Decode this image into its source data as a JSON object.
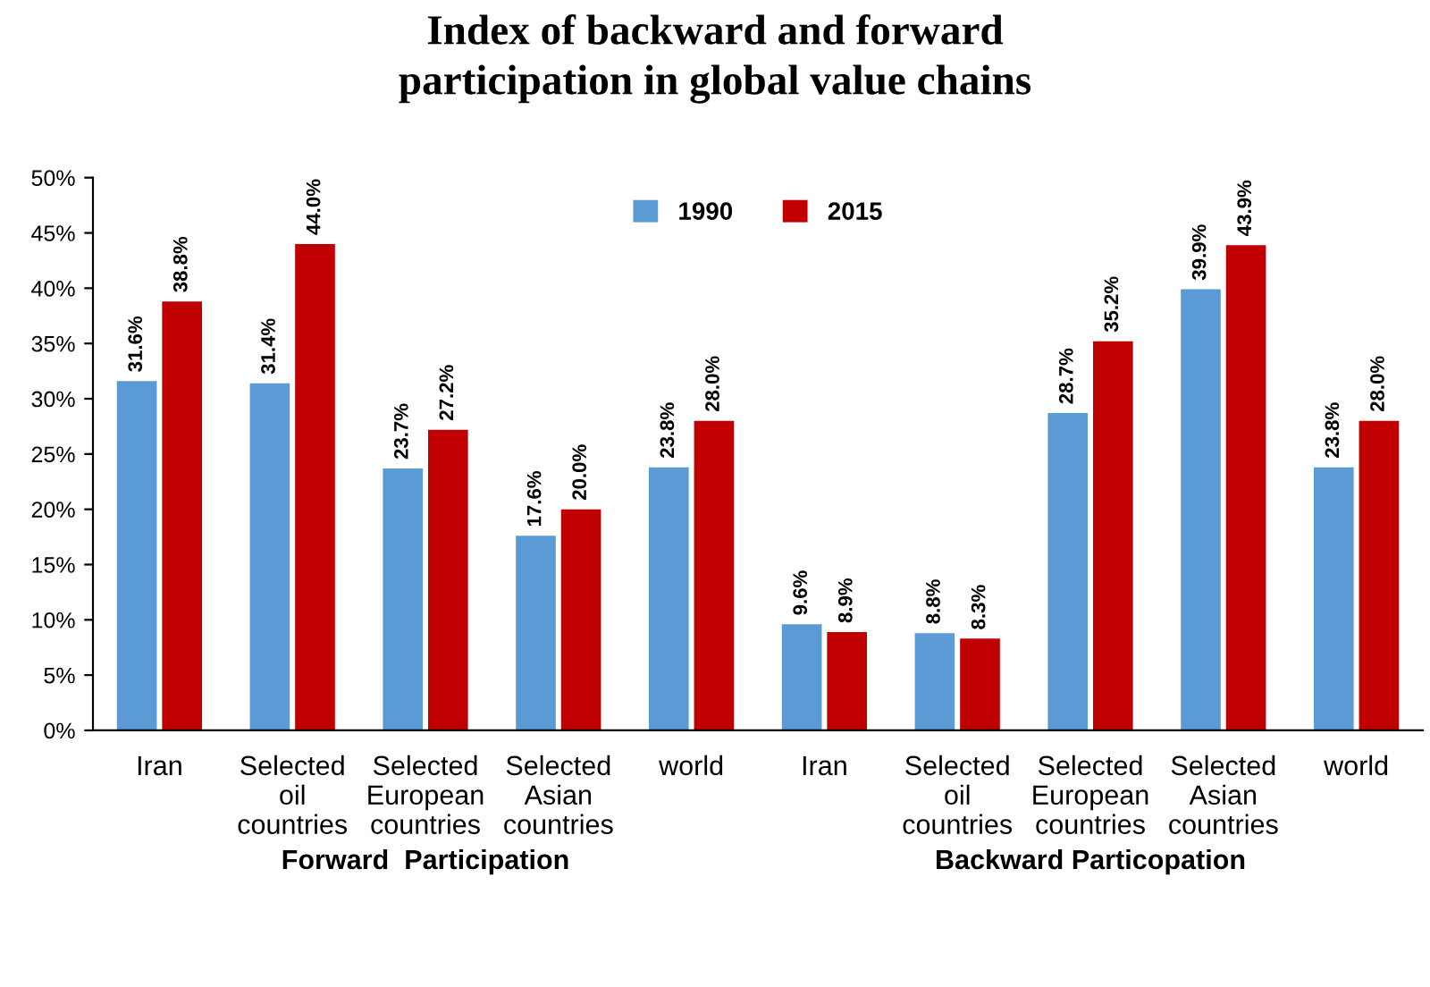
{
  "chart_data": {
    "type": "bar",
    "title": "Index of backward and forward participation in global value chains",
    "categories": [
      "Iran",
      "Selected oil countries",
      "Selected European countries",
      "Selected Asian countries",
      "world",
      "Iran",
      "Selected oil countries",
      "Selected European countries",
      "Selected Asian countries",
      "world"
    ],
    "series": [
      {
        "name": "1990",
        "color": "#5b9bd5",
        "values": [
          31.6,
          31.4,
          23.7,
          17.6,
          23.8,
          9.6,
          8.8,
          28.7,
          39.9,
          23.8
        ],
        "value_labels": [
          "31.6%",
          "31.4%",
          "23.7%",
          "17.6%",
          "23.8%",
          "9.6%",
          "8.8%",
          "28.7%",
          "39.9%",
          "23.8%"
        ]
      },
      {
        "name": "2015",
        "color": "#c00000",
        "values": [
          38.8,
          44.0,
          27.2,
          20.0,
          28.0,
          8.9,
          8.3,
          35.2,
          43.9,
          28.0
        ],
        "value_labels": [
          "38.8%",
          "44.0%",
          "27.2%",
          "20.0%",
          "28.0%",
          "8.9%",
          "8.3%",
          "35.2%",
          "43.9%",
          "28.0%"
        ]
      }
    ],
    "ylim": [
      0,
      50
    ],
    "yticks": [
      {
        "value": 0,
        "label": "0%"
      },
      {
        "value": 5,
        "label": "5%"
      },
      {
        "value": 10,
        "label": "10%"
      },
      {
        "value": 15,
        "label": "15%"
      },
      {
        "value": 20,
        "label": "20%"
      },
      {
        "value": 25,
        "label": "25%"
      },
      {
        "value": 30,
        "label": "30%"
      },
      {
        "value": 35,
        "label": "35%"
      },
      {
        "value": 40,
        "label": "40%"
      },
      {
        "value": 45,
        "label": "45%"
      },
      {
        "value": 50,
        "label": "50%"
      }
    ],
    "grid": false,
    "legend": "top",
    "annotations": [
      "Forward  Participation",
      "Backward Particopation"
    ]
  }
}
